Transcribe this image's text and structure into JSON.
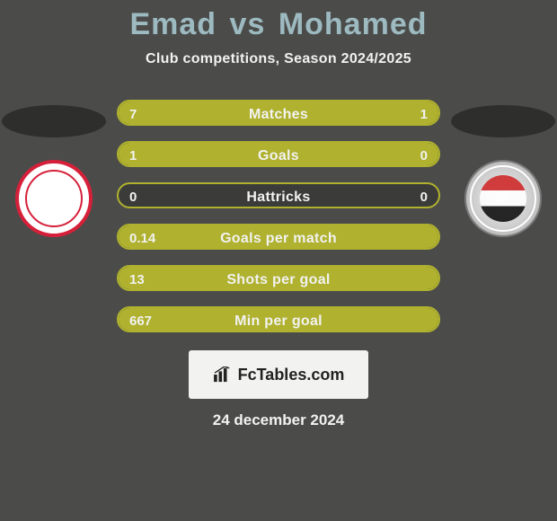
{
  "colors": {
    "background": "#4b4c4a",
    "accent": "#afb12f",
    "mutedBar": "#3b3c3a",
    "title": "#9dbac1",
    "textLight": "#f2f2f0",
    "textDark": "#222222",
    "badgeBg": "#f2f2f0",
    "badgeText": "#222222",
    "silhouette": "#2e2f2d"
  },
  "header": {
    "player1": "Emad",
    "vs": "vs",
    "player2": "Mohamed",
    "subtitle": "Club competitions, Season 2024/2025"
  },
  "avatars": {
    "left_club": "Zamalek",
    "right_club": "Tala'ea El Gaish"
  },
  "stats": {
    "rows": [
      {
        "label": "Matches",
        "left": "7",
        "right": "1",
        "left_pct": 88,
        "right_pct": 12
      },
      {
        "label": "Goals",
        "left": "1",
        "right": "0",
        "left_pct": 100,
        "right_pct": 0
      },
      {
        "label": "Hattricks",
        "left": "0",
        "right": "0",
        "left_pct": 0,
        "right_pct": 0
      },
      {
        "label": "Goals per match",
        "left": "0.14",
        "right": "",
        "left_pct": 100,
        "right_pct": 0
      },
      {
        "label": "Shots per goal",
        "left": "13",
        "right": "",
        "left_pct": 100,
        "right_pct": 0
      },
      {
        "label": "Min per goal",
        "left": "667",
        "right": "",
        "left_pct": 100,
        "right_pct": 0
      }
    ]
  },
  "footer": {
    "site": "FcTables.com",
    "date": "24 december 2024"
  }
}
